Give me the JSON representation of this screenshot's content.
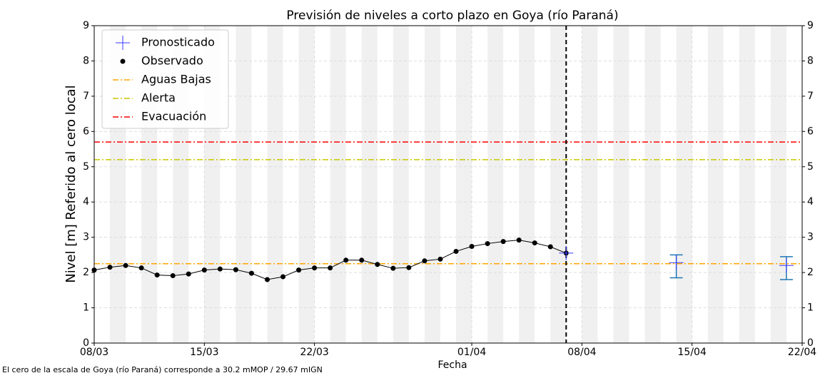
{
  "chart_data": {
    "type": "line",
    "title": "Previsión de niveles a corto plazo en Goya (río Paraná)",
    "xlabel": "Fecha",
    "ylabel": "Nivel [m] Referido al cero local",
    "footnote": "El cero de la escala de Goya (río Paraná) corresponde a 30.2 mMOP / 29.67 mIGN",
    "xlim": [
      "08/03",
      "22/04"
    ],
    "xticks": [
      "08/03",
      "15/03",
      "22/03",
      "01/04",
      "08/04",
      "15/04",
      "22/04"
    ],
    "ylim": [
      0,
      9
    ],
    "yticks": [
      0,
      1,
      2,
      3,
      4,
      5,
      6,
      7,
      8,
      9
    ],
    "grid": true,
    "legend": "upper left",
    "forecast_start": "07/04",
    "series": [
      {
        "name": "Pronosticado",
        "color": "#3b3bff",
        "errcolor": "#1f77b4",
        "x": [
          "07/04",
          "14/04",
          "21/04"
        ],
        "values": [
          2.55,
          2.28,
          2.2
        ],
        "lower": [
          null,
          1.85,
          1.8
        ],
        "upper": [
          null,
          2.5,
          2.45
        ]
      },
      {
        "name": "Observado",
        "color": "#000000",
        "x": [
          "08/03",
          "09/03",
          "10/03",
          "11/03",
          "12/03",
          "13/03",
          "14/03",
          "15/03",
          "16/03",
          "17/03",
          "18/03",
          "19/03",
          "20/03",
          "21/03",
          "22/03",
          "23/03",
          "24/03",
          "25/03",
          "26/03",
          "27/03",
          "28/03",
          "29/03",
          "30/03",
          "31/03",
          "01/04",
          "02/04",
          "03/04",
          "04/04",
          "05/04",
          "06/04",
          "07/04"
        ],
        "values": [
          2.07,
          2.15,
          2.2,
          2.13,
          1.93,
          1.91,
          1.96,
          2.07,
          2.1,
          2.08,
          1.98,
          1.8,
          1.88,
          2.07,
          2.13,
          2.13,
          2.35,
          2.35,
          2.23,
          2.12,
          2.14,
          2.33,
          2.38,
          2.6,
          2.74,
          2.82,
          2.88,
          2.92,
          2.84,
          2.73,
          2.55
        ]
      }
    ],
    "thresholds": [
      {
        "name": "Aguas Bajas",
        "color": "#ffa500",
        "value": 2.25
      },
      {
        "name": "Alerta",
        "color": "#c8c800",
        "value": 5.2
      },
      {
        "name": "Evacuación",
        "color": "#ff0000",
        "value": 5.7
      }
    ]
  }
}
